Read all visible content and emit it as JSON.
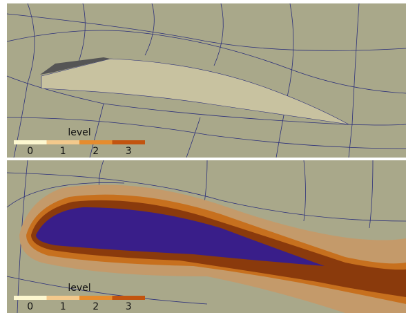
{
  "panels": [
    {
      "legend": {
        "title": "level",
        "levels": [
          {
            "label": "0",
            "color": "#fdf8d0"
          },
          {
            "label": "1",
            "color": "#f3c98c"
          },
          {
            "label": "2",
            "color": "#e68c2e"
          },
          {
            "label": "3",
            "color": "#c2540f"
          }
        ]
      }
    },
    {
      "legend": {
        "title": "level",
        "levels": [
          {
            "label": "0",
            "color": "#fdf8d0"
          },
          {
            "label": "1",
            "color": "#f3c98c"
          },
          {
            "label": "2",
            "color": "#e68c2e"
          },
          {
            "label": "3",
            "color": "#c2540f"
          }
        ]
      }
    }
  ]
}
